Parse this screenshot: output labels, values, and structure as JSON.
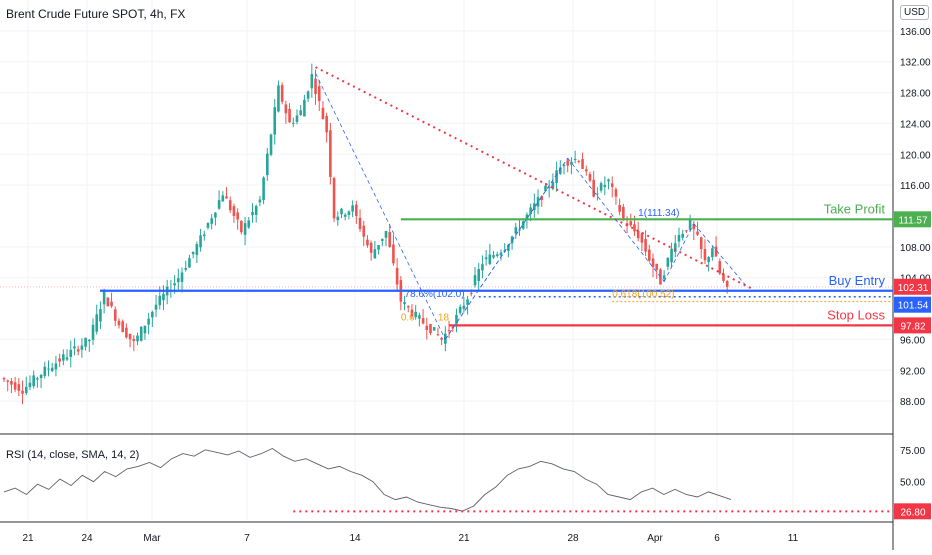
{
  "header": {
    "title": "Brent Crude Future SPOT, 4h, FX",
    "currency": "USD"
  },
  "rsi": {
    "label": "RSI (14, close, SMA, 14, 2)"
  },
  "colors": {
    "up": "#26a69a",
    "down": "#ef5350",
    "green_line": "#4caf50",
    "blue_line": "#2962ff",
    "red_line": "#f23645",
    "trend": "#f23645",
    "fib": "#f7a21b",
    "pattern": "#2962ff",
    "rsi_line": "#5d606b",
    "grid": "#f0f3fa"
  },
  "chart_data": [
    {
      "type": "candlestick",
      "title": "Brent Crude Future SPOT, 4h, FX",
      "ylim": [
        84.0,
        140.0
      ],
      "y_ticks": [
        "136.00",
        "132.00",
        "128.00",
        "124.00",
        "120.00",
        "116.00",
        "108.00",
        "104.00",
        "96.00",
        "92.00",
        "88.00"
      ],
      "x_ticks": [
        "21",
        "24",
        "Mar",
        "7",
        "14",
        "21",
        "28",
        "Apr",
        "6",
        "11"
      ],
      "grid": true,
      "price_path": [
        {
          "x": 0,
          "y": 91.0
        },
        {
          "x": 6,
          "y": 89.5
        },
        {
          "x": 12,
          "y": 92.0
        },
        {
          "x": 18,
          "y": 94.0
        },
        {
          "x": 24,
          "y": 96.0
        },
        {
          "x": 28,
          "y": 101.8
        },
        {
          "x": 32,
          "y": 98.0
        },
        {
          "x": 36,
          "y": 95.5
        },
        {
          "x": 42,
          "y": 100.5
        },
        {
          "x": 48,
          "y": 104.0
        },
        {
          "x": 54,
          "y": 109.0
        },
        {
          "x": 60,
          "y": 115.0
        },
        {
          "x": 65,
          "y": 110.0
        },
        {
          "x": 70,
          "y": 114.0
        },
        {
          "x": 75,
          "y": 128.5
        },
        {
          "x": 78,
          "y": 124.0
        },
        {
          "x": 81,
          "y": 125.5
        },
        {
          "x": 84,
          "y": 130.2
        },
        {
          "x": 88,
          "y": 123.0
        },
        {
          "x": 90,
          "y": 112.0
        },
        {
          "x": 95,
          "y": 113.0
        },
        {
          "x": 100,
          "y": 107.0
        },
        {
          "x": 104,
          "y": 110.0
        },
        {
          "x": 108,
          "y": 101.0
        },
        {
          "x": 112,
          "y": 99.0
        },
        {
          "x": 117,
          "y": 97.0
        },
        {
          "x": 119,
          "y": 96.0
        },
        {
          "x": 122,
          "y": 98.0
        },
        {
          "x": 126,
          "y": 101.5
        },
        {
          "x": 130,
          "y": 106.0
        },
        {
          "x": 136,
          "y": 108.0
        },
        {
          "x": 142,
          "y": 112.0
        },
        {
          "x": 148,
          "y": 116.0
        },
        {
          "x": 152,
          "y": 119.0
        },
        {
          "x": 156,
          "y": 119.5
        },
        {
          "x": 160,
          "y": 115.0
        },
        {
          "x": 164,
          "y": 116.5
        },
        {
          "x": 168,
          "y": 111.5
        },
        {
          "x": 172,
          "y": 109.5
        },
        {
          "x": 176,
          "y": 105.5
        },
        {
          "x": 178,
          "y": 103.5
        },
        {
          "x": 182,
          "y": 109.0
        },
        {
          "x": 186,
          "y": 111.0
        },
        {
          "x": 188,
          "y": 109.0
        },
        {
          "x": 190,
          "y": 106.0
        },
        {
          "x": 192,
          "y": 108.0
        },
        {
          "x": 194,
          "y": 104.5
        },
        {
          "x": 196,
          "y": 102.3
        }
      ],
      "horizontal_levels": [
        {
          "label": "Take Profit",
          "value": 111.57,
          "color": "#4caf50",
          "style": "solid"
        },
        {
          "label": "Buy Entry",
          "value": 102.31,
          "color": "#2962ff",
          "style": "solid"
        },
        {
          "label": "Stop Loss",
          "value": 97.82,
          "color": "#f23645",
          "style": "solid"
        },
        {
          "value": 101.54,
          "color": "#2962ff",
          "style": "dotted"
        }
      ],
      "price_labels": [
        "111.57",
        "102.31",
        "101.54",
        "97.82"
      ],
      "annotations": [
        "78.6%(102.0)",
        "0.6",
        "18",
        "1(111.34)",
        "0.618(100.52)"
      ],
      "trendline": {
        "from": {
          "x": 84,
          "y": 131.3
        },
        "to": {
          "x": 196,
          "y": 104.0
        },
        "style": "dotted"
      }
    },
    {
      "type": "line",
      "title": "RSI (14, close, SMA, 14, 2)",
      "ylim": [
        20,
        85
      ],
      "y_ticks": [
        "75.00",
        "50.00"
      ],
      "level": {
        "value": 26.8,
        "label": "26.80"
      },
      "values": [
        42,
        45,
        40,
        48,
        44,
        52,
        47,
        55,
        50,
        58,
        54,
        60,
        62,
        65,
        61,
        68,
        72,
        70,
        75,
        73,
        71,
        74,
        69,
        72,
        76,
        70,
        66,
        68,
        64,
        60,
        62,
        58,
        55,
        50,
        40,
        36,
        38,
        34,
        32,
        30,
        29,
        27,
        31,
        40,
        46,
        55,
        60,
        62,
        66,
        64,
        60,
        58,
        52,
        48,
        40,
        38,
        36,
        42,
        45,
        40,
        44,
        40,
        38,
        42,
        39,
        36
      ]
    }
  ]
}
